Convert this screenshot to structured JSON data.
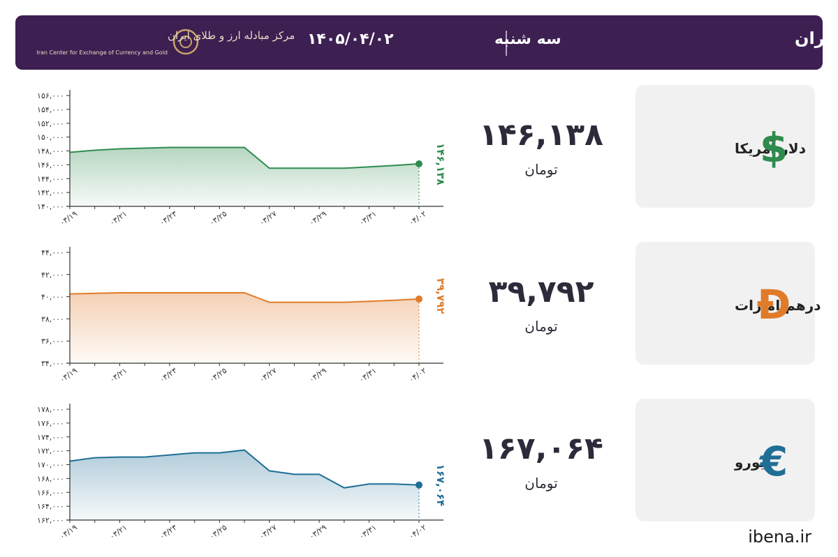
{
  "header": {
    "title": "نرخ قیمت ارز مرکز مبادله ایران",
    "weekday": "سه شنبه",
    "date": "۱۴۰۵/۰۴/۰۲",
    "logo_name": "مرکز مبادله ارز و طلای ایران",
    "logo_subtitle": "Iran Center for Exchange of Currency and Gold"
  },
  "footer": "ibena.ir",
  "chart_data": [
    {
      "type": "line",
      "name": "دلار آمریکا",
      "symbol": "$",
      "unit": "تومان",
      "color": "#2e8b4e",
      "categories": [
        "۰۳/۱۹",
        null,
        "۰۳/۲۱",
        null,
        "۰۳/۲۳",
        null,
        "۰۳/۲۵",
        null,
        "۰۳/۲۷",
        null,
        "۰۳/۲۹",
        null,
        "۰۳/۳۱",
        null,
        "۰۴/۰۲"
      ],
      "values": [
        147800,
        148100,
        148300,
        148400,
        148500,
        148500,
        148500,
        148500,
        145500,
        145500,
        145500,
        145500,
        145700,
        145900,
        146138
      ],
      "value_labels": [
        null,
        null,
        null,
        null,
        null,
        null,
        null,
        null,
        null,
        null,
        null,
        null,
        null,
        null,
        "۱۴۶,۱۳۸"
      ],
      "ylim": [
        140000,
        156000
      ],
      "yticks": [
        {
          "value": 140000,
          "label": "۱۴۰,۰۰۰"
        },
        {
          "value": 142000,
          "label": "۱۴۲,۰۰۰"
        },
        {
          "value": 144000,
          "label": "۱۴۴,۰۰۰"
        },
        {
          "value": 146000,
          "label": "۱۴۶,۰۰۰"
        },
        {
          "value": 148000,
          "label": "۱۴۸,۰۰۰"
        },
        {
          "value": 150000,
          "label": "۱۵۰,۰۰۰"
        },
        {
          "value": 152000,
          "label": "۱۵۲,۰۰۰"
        },
        {
          "value": 154000,
          "label": "۱۵۴,۰۰۰"
        },
        {
          "value": 156000,
          "label": "۱۵۶,۰۰۰"
        }
      ]
    },
    {
      "type": "line",
      "name": "درهم امارات",
      "symbol": "Đ",
      "unit": "تومان",
      "color": "#e07b2a",
      "categories": [
        "۰۳/۱۹",
        null,
        "۰۳/۲۱",
        null,
        "۰۳/۲۳",
        null,
        "۰۳/۲۵",
        null,
        "۰۳/۲۷",
        null,
        "۰۳/۲۹",
        null,
        "۰۳/۳۱",
        null,
        "۰۴/۰۲"
      ],
      "values": [
        40250,
        40300,
        40350,
        40350,
        40350,
        40350,
        40350,
        40350,
        39500,
        39500,
        39500,
        39500,
        39580,
        39680,
        39792
      ],
      "value_labels": [
        null,
        null,
        null,
        null,
        null,
        null,
        null,
        null,
        null,
        null,
        null,
        null,
        null,
        null,
        "۳۹,۷۹۲"
      ],
      "ylim": [
        34000,
        44000
      ],
      "yticks": [
        {
          "value": 34000,
          "label": "۳۴,۰۰۰"
        },
        {
          "value": 36000,
          "label": "۳۶,۰۰۰"
        },
        {
          "value": 38000,
          "label": "۳۸,۰۰۰"
        },
        {
          "value": 40000,
          "label": "۴۰,۰۰۰"
        },
        {
          "value": 42000,
          "label": "۴۲,۰۰۰"
        },
        {
          "value": 44000,
          "label": "۴۴,۰۰۰"
        }
      ]
    },
    {
      "type": "line",
      "name": "یورو",
      "symbol": "€",
      "unit": "تومان",
      "color": "#1f6e96",
      "categories": [
        "۰۳/۱۹",
        null,
        "۰۳/۲۱",
        null,
        "۰۳/۲۳",
        null,
        "۰۳/۲۵",
        null,
        "۰۳/۲۷",
        null,
        "۰۳/۲۹",
        null,
        "۰۳/۳۱",
        null,
        "۰۴/۰۲"
      ],
      "values": [
        170500,
        171000,
        171100,
        171100,
        171400,
        171700,
        171700,
        172100,
        169100,
        168600,
        168600,
        166650,
        167200,
        167200,
        167064
      ],
      "value_labels": [
        null,
        null,
        null,
        null,
        null,
        null,
        null,
        null,
        null,
        null,
        null,
        null,
        null,
        null,
        "۱۶۷,۰۶۴"
      ],
      "ylim": [
        162000,
        178000
      ],
      "yticks": [
        {
          "value": 162000,
          "label": "۱۶۲,۰۰۰"
        },
        {
          "value": 164000,
          "label": "۱۶۴,۰۰۰"
        },
        {
          "value": 166000,
          "label": "۱۶۶,۰۰۰"
        },
        {
          "value": 168000,
          "label": "۱۶۸,۰۰۰"
        },
        {
          "value": 170000,
          "label": "۱۷۰,۰۰۰"
        },
        {
          "value": 172000,
          "label": "۱۷۲,۰۰۰"
        },
        {
          "value": 174000,
          "label": "۱۷۴,۰۰۰"
        },
        {
          "value": 176000,
          "label": "۱۷۶,۰۰۰"
        },
        {
          "value": 178000,
          "label": "۱۷۸,۰۰۰"
        }
      ]
    }
  ]
}
